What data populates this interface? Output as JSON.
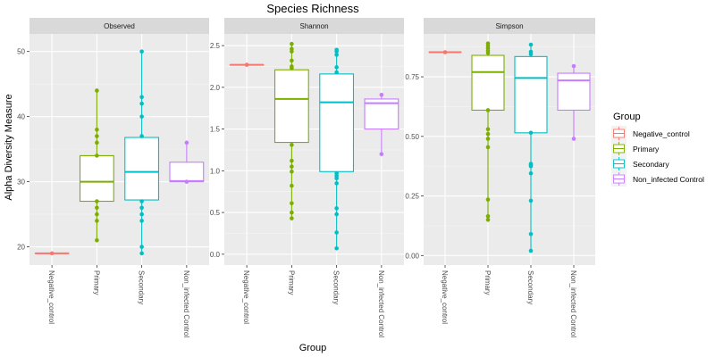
{
  "chart_data": {
    "type": "box",
    "title": "Species Richness",
    "xlabel": "Group",
    "ylabel": "Alpha Diversity Measure",
    "categories": [
      "Negative_control",
      "Primary",
      "Secondary",
      "Non_infected Control"
    ],
    "colors": {
      "Negative_control": "#F8766D",
      "Primary": "#7CAE00",
      "Secondary": "#00BFC4",
      "Non_infected Control": "#C77CFF"
    },
    "legend": {
      "title": "Group",
      "position": "right",
      "entries": [
        "Negative_control",
        "Primary",
        "Secondary",
        "Non_infected Control"
      ]
    },
    "panels": [
      {
        "name": "Observed",
        "ylim": [
          17.2,
          52.7
        ],
        "yticks": [
          20,
          30,
          40,
          50
        ],
        "ytick_labels": [
          "20",
          "30",
          "40",
          "50"
        ],
        "boxes": [
          {
            "group": "Negative_control",
            "min": 19,
            "q1": 19,
            "median": 19,
            "q3": 19,
            "max": 19,
            "points": [
              19
            ]
          },
          {
            "group": "Primary",
            "min": 21,
            "q1": 27,
            "median": 30,
            "q3": 34,
            "max": 44,
            "points": [
              21,
              24,
              25,
              26,
              27,
              34,
              36,
              37,
              38,
              44
            ]
          },
          {
            "group": "Secondary",
            "min": 19,
            "q1": 27.2,
            "median": 31.5,
            "q3": 36.8,
            "max": 50,
            "points": [
              19,
              20,
              24,
              25,
              26,
              27,
              37,
              40,
              42,
              43,
              50
            ]
          },
          {
            "group": "Non_infected Control",
            "min": 30,
            "q1": 30,
            "median": 30.1,
            "q3": 33,
            "max": 36,
            "points": [
              30,
              36
            ]
          }
        ]
      },
      {
        "name": "Shannon",
        "ylim": [
          -0.13,
          2.64
        ],
        "yticks": [
          0.0,
          0.5,
          1.0,
          1.5,
          2.0,
          2.5
        ],
        "ytick_labels": [
          "0.0",
          "0.5",
          "1.0",
          "1.5",
          "2.0",
          "2.5"
        ],
        "boxes": [
          {
            "group": "Negative_control",
            "min": 2.27,
            "q1": 2.27,
            "median": 2.27,
            "q3": 2.27,
            "max": 2.27,
            "points": [
              2.27
            ]
          },
          {
            "group": "Primary",
            "min": 0.43,
            "q1": 1.34,
            "median": 1.86,
            "q3": 2.21,
            "max": 2.52,
            "points": [
              0.43,
              0.5,
              0.61,
              0.82,
              0.99,
              1.05,
              1.12,
              1.31,
              2.23,
              2.25,
              2.32,
              2.43,
              2.46,
              2.52
            ]
          },
          {
            "group": "Secondary",
            "min": 0.07,
            "q1": 0.99,
            "median": 1.82,
            "q3": 2.16,
            "max": 2.45,
            "points": [
              0.07,
              0.26,
              0.48,
              0.55,
              0.85,
              0.91,
              0.94,
              0.97,
              2.18,
              2.24,
              2.39,
              2.43,
              2.45
            ]
          },
          {
            "group": "Non_infected Control",
            "min": 1.2,
            "q1": 1.5,
            "median": 1.81,
            "q3": 1.86,
            "max": 1.91,
            "points": [
              1.2,
              1.91
            ]
          }
        ]
      },
      {
        "name": "Simpson",
        "ylim": [
          -0.04,
          0.93
        ],
        "yticks": [
          0.0,
          0.25,
          0.5,
          0.75
        ],
        "ytick_labels": [
          "0.00",
          "0.25",
          "0.50",
          "0.75"
        ],
        "boxes": [
          {
            "group": "Negative_control",
            "min": 0.853,
            "q1": 0.853,
            "median": 0.853,
            "q3": 0.853,
            "max": 0.853,
            "points": [
              0.853
            ]
          },
          {
            "group": "Primary",
            "min": 0.15,
            "q1": 0.61,
            "median": 0.77,
            "q3": 0.84,
            "max": 0.89,
            "points": [
              0.15,
              0.165,
              0.235,
              0.455,
              0.49,
              0.51,
              0.53,
              0.61,
              0.85,
              0.86,
              0.87,
              0.88,
              0.89
            ]
          },
          {
            "group": "Secondary",
            "min": 0.02,
            "q1": 0.515,
            "median": 0.745,
            "q3": 0.835,
            "max": 0.885,
            "points": [
              0.02,
              0.09,
              0.23,
              0.345,
              0.375,
              0.38,
              0.385,
              0.515,
              0.845,
              0.855,
              0.885
            ]
          },
          {
            "group": "Non_infected Control",
            "min": 0.49,
            "q1": 0.61,
            "median": 0.735,
            "q3": 0.765,
            "max": 0.795,
            "points": [
              0.49,
              0.795
            ]
          }
        ]
      }
    ]
  }
}
